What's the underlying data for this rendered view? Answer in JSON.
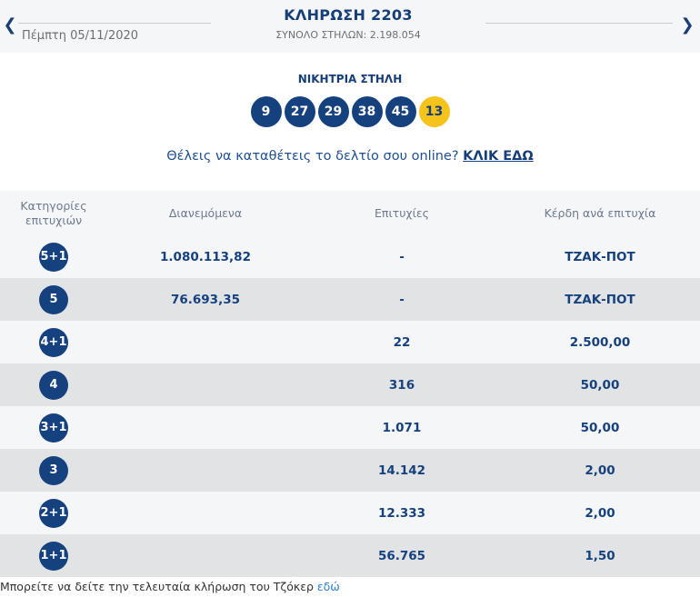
{
  "header": {
    "prev_icon": "chevron-left-icon",
    "next_icon": "chevron-right-icon",
    "date": "Πέμπτη 05/11/2020",
    "title": "ΚΛΗΡΩΣΗ 2203",
    "total_columns": "ΣΥΝΟΛΟ ΣΤΗΛΩΝ: 2.198.054"
  },
  "winning": {
    "label": "ΝΙΚΗΤΡΙΑ ΣΤΗΛΗ",
    "numbers": [
      "9",
      "27",
      "29",
      "38",
      "45"
    ],
    "joker": "13"
  },
  "online": {
    "text": "Θέλεις να καταθέτεις το δελτίο σου online?",
    "link": "ΚΛΙΚ ΕΔΩ"
  },
  "table": {
    "headers": {
      "category": "Κατηγορίες επιτυχιών",
      "distributed": "Διανεμόμενα",
      "winners": "Επιτυχίες",
      "prize": "Κέρδη ανά επιτυχία"
    },
    "rows": [
      {
        "category": "5+1",
        "distributed": "1.080.113,82",
        "winners": "-",
        "prize": "ΤΖΑΚ-ΠΟΤ"
      },
      {
        "category": "5",
        "distributed": "76.693,35",
        "winners": "-",
        "prize": "ΤΖΑΚ-ΠΟΤ"
      },
      {
        "category": "4+1",
        "distributed": "",
        "winners": "22",
        "prize": "2.500,00"
      },
      {
        "category": "4",
        "distributed": "",
        "winners": "316",
        "prize": "50,00"
      },
      {
        "category": "3+1",
        "distributed": "",
        "winners": "1.071",
        "prize": "50,00"
      },
      {
        "category": "3",
        "distributed": "",
        "winners": "14.142",
        "prize": "2,00"
      },
      {
        "category": "2+1",
        "distributed": "",
        "winners": "12.333",
        "prize": "2,00"
      },
      {
        "category": "1+1",
        "distributed": "",
        "winners": "56.765",
        "prize": "1,50"
      }
    ]
  },
  "footer": {
    "text": "Μπορείτε να δείτε την τελευταία κλήρωση του Τζόκερ ",
    "link": "εδώ"
  }
}
